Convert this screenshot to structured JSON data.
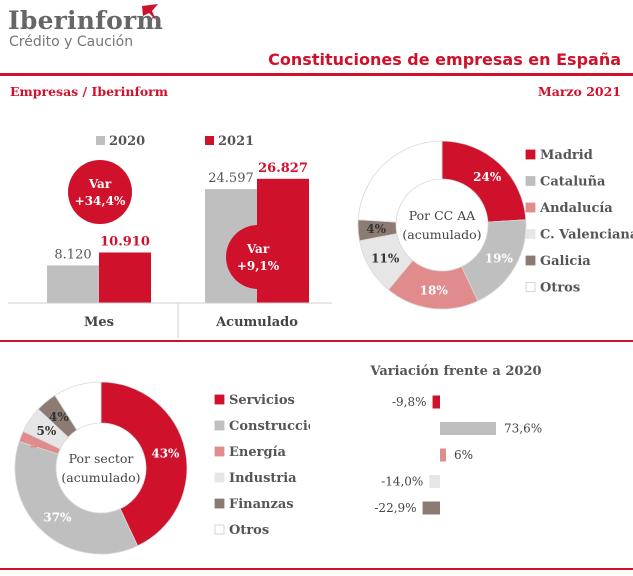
{
  "header": {
    "brand": "Iberinform",
    "brand_sub": "Crédito y Caución",
    "title": "Constituciones de empresas en España",
    "source": "Empresas / Iberinform",
    "date": "Marzo 2021"
  },
  "colors": {
    "red": "#d0112b",
    "grey": "#bfbfbf",
    "pink": "#e08c8c",
    "light": "#e6e6e6",
    "brown": "#8c7b72",
    "white": "#ffffff"
  },
  "chart_data": [
    {
      "type": "bar",
      "categories": [
        "Mes",
        "Acumulado"
      ],
      "series": [
        {
          "name": "2020",
          "values": [
            8120,
            24597
          ],
          "labels": [
            "8.120",
            "24.597"
          ],
          "color": "#bfbfbf"
        },
        {
          "name": "2021",
          "values": [
            10910,
            26827
          ],
          "labels": [
            "10.910",
            "26.827"
          ],
          "color": "#d0112b"
        }
      ],
      "annotations": [
        {
          "category": "Mes",
          "text": [
            "Var",
            "+34,4%"
          ]
        },
        {
          "category": "Acumulado",
          "text": [
            "Var",
            "+9,1%"
          ]
        }
      ]
    },
    {
      "type": "pie",
      "donut": true,
      "center_label": [
        "Por CC AA",
        "(acumulado)"
      ],
      "slices": [
        {
          "name": "Madrid",
          "value": 24,
          "label": "24%",
          "color": "#d0112b"
        },
        {
          "name": "Cataluña",
          "value": 19,
          "label": "19%",
          "color": "#bfbfbf"
        },
        {
          "name": "Andalucía",
          "value": 18,
          "label": "18%",
          "color": "#e08c8c"
        },
        {
          "name": "C. Valenciana",
          "value": 11,
          "label": "11%",
          "color": "#e6e6e6"
        },
        {
          "name": "Galicia",
          "value": 4,
          "label": "4%",
          "color": "#8c7b72"
        },
        {
          "name": "Otros",
          "value": 24,
          "label": "",
          "color": "#ffffff"
        }
      ],
      "legend": "right"
    },
    {
      "type": "pie",
      "donut": true,
      "center_label": [
        "Por sector",
        "(acumulado)"
      ],
      "slices": [
        {
          "name": "Servicios",
          "value": 43,
          "label": "43%",
          "color": "#d0112b"
        },
        {
          "name": "Construcción",
          "value": 37,
          "label": "37%",
          "color": "#bfbfbf"
        },
        {
          "name": "Energía",
          "value": 2,
          "label": "2%",
          "color": "#e08c8c"
        },
        {
          "name": "Industria",
          "value": 5,
          "label": "5%",
          "color": "#e6e6e6"
        },
        {
          "name": "Finanzas",
          "value": 4,
          "label": "4%",
          "color": "#8c7b72"
        },
        {
          "name": "Otros",
          "value": 9,
          "label": "",
          "color": "#ffffff"
        }
      ],
      "legend": "right"
    },
    {
      "type": "bar",
      "orientation": "horizontal",
      "title": "Variación frente a 2020",
      "categories": [
        "Servicios",
        "Construcción",
        "Energía",
        "Industria",
        "Finanzas"
      ],
      "values": [
        -9.8,
        73.6,
        6,
        -14.0,
        -22.9
      ],
      "labels": [
        "-9,8%",
        "73,6%",
        "6%",
        "-14,0%",
        "-22,9%"
      ],
      "colors": [
        "#d0112b",
        "#bfbfbf",
        "#e08c8c",
        "#e6e6e6",
        "#8c7b72"
      ]
    }
  ]
}
